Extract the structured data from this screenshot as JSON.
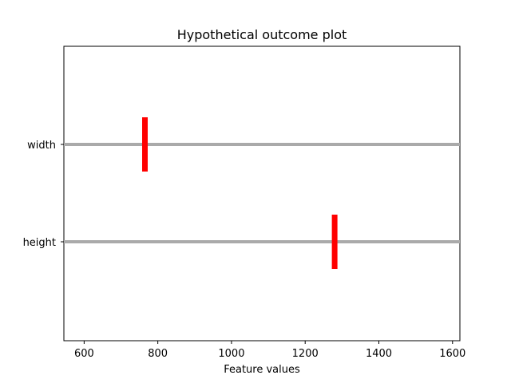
{
  "chart_data": {
    "type": "scatter",
    "title": "Hypothetical outcome plot",
    "xlabel": "Feature values",
    "ylabel": "",
    "xlim": [
      545,
      1620
    ],
    "xticks": [
      600,
      800,
      1000,
      1200,
      1400,
      1600
    ],
    "xtick_labels": [
      "600",
      "800",
      "1000",
      "1200",
      "1400",
      "1600"
    ],
    "categories": [
      "width",
      "height"
    ],
    "series": [
      {
        "values": [
          {
            "category": "width",
            "x": 765
          },
          {
            "category": "height",
            "x": 1280
          }
        ]
      }
    ],
    "grid": false,
    "legend": "none",
    "colors": {
      "line": "#aaaaaa",
      "marker": "#ff0000",
      "frame": "#000000"
    }
  }
}
